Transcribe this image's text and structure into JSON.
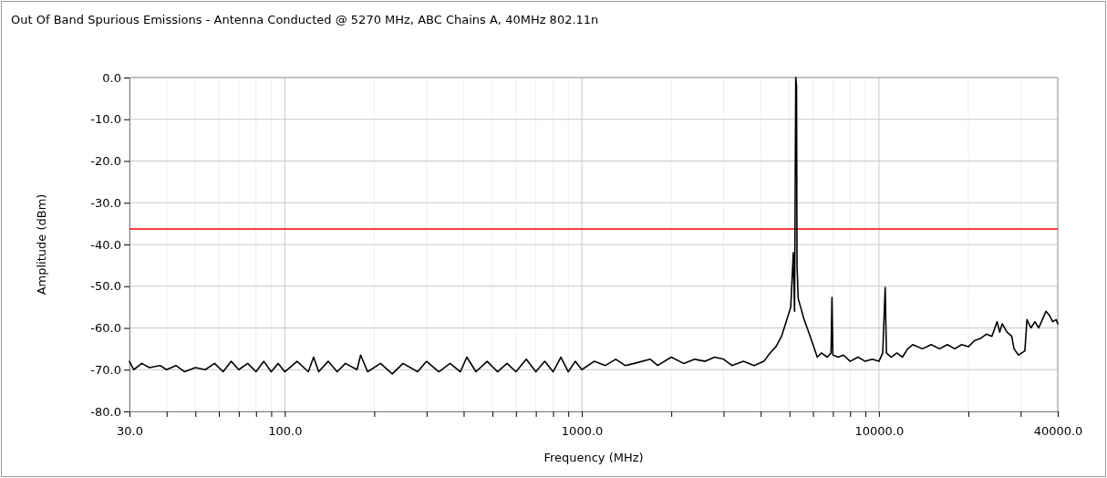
{
  "chart_data": {
    "type": "line",
    "title": "Out Of Band Spurious Emissions - Antenna Conducted @ 5270 MHz, ABC Chains A, 40MHz 802.11n",
    "xlabel": "Frequency (MHz)",
    "ylabel": "Amplitude (dBm)",
    "log": "x",
    "grid": true,
    "marker": "none",
    "line_style": "solid",
    "xlim": [
      30,
      40000
    ],
    "ylim": [
      -80,
      0
    ],
    "xticks": [
      {
        "value": 30,
        "label": "30.0"
      },
      {
        "value": 40,
        "label": null
      },
      {
        "value": 50,
        "label": null
      },
      {
        "value": 60,
        "label": null
      },
      {
        "value": 70,
        "label": null
      },
      {
        "value": 80,
        "label": null
      },
      {
        "value": 90,
        "label": null
      },
      {
        "value": 100,
        "label": "100.0"
      },
      {
        "value": 200,
        "label": null
      },
      {
        "value": 300,
        "label": null
      },
      {
        "value": 400,
        "label": null
      },
      {
        "value": 500,
        "label": null
      },
      {
        "value": 600,
        "label": null
      },
      {
        "value": 700,
        "label": null
      },
      {
        "value": 800,
        "label": null
      },
      {
        "value": 900,
        "label": null
      },
      {
        "value": 1000,
        "label": "1000.0"
      },
      {
        "value": 2000,
        "label": null
      },
      {
        "value": 3000,
        "label": null
      },
      {
        "value": 4000,
        "label": null
      },
      {
        "value": 5000,
        "label": null
      },
      {
        "value": 6000,
        "label": null
      },
      {
        "value": 7000,
        "label": null
      },
      {
        "value": 8000,
        "label": null
      },
      {
        "value": 9000,
        "label": null
      },
      {
        "value": 10000,
        "label": "10000.0"
      },
      {
        "value": 20000,
        "label": null
      },
      {
        "value": 30000,
        "label": null
      },
      {
        "value": 40000,
        "label": "40000.0"
      }
    ],
    "yticks": [
      {
        "value": 0,
        "label": "0.0"
      },
      {
        "value": -10,
        "label": "-10.0"
      },
      {
        "value": -20,
        "label": "-20.0"
      },
      {
        "value": -30,
        "label": "-30.0"
      },
      {
        "value": -40,
        "label": "-40.0"
      },
      {
        "value": -50,
        "label": "-50.0"
      },
      {
        "value": -60,
        "label": "-60.0"
      },
      {
        "value": -70,
        "label": "-70.0"
      },
      {
        "value": -80,
        "label": "-80.0"
      }
    ],
    "ref_lines": [
      {
        "axis": "y",
        "value": -36.3,
        "color": "#ff0000"
      }
    ],
    "series": [
      {
        "color": "#000000",
        "x": [
          30,
          31,
          33,
          35,
          38,
          40,
          43,
          46,
          50,
          54,
          58,
          62,
          66,
          70,
          75,
          80,
          85,
          90,
          95,
          100,
          110,
          120,
          125,
          130,
          140,
          150,
          160,
          175,
          180,
          190,
          210,
          230,
          250,
          280,
          300,
          330,
          360,
          390,
          410,
          440,
          480,
          520,
          560,
          600,
          650,
          700,
          750,
          800,
          850,
          900,
          950,
          1000,
          1100,
          1200,
          1300,
          1400,
          1500,
          1700,
          1800,
          2000,
          2200,
          2400,
          2600,
          2800,
          3000,
          3200,
          3500,
          3800,
          4100,
          4300,
          4500,
          4700,
          4900,
          5050,
          5150,
          5200,
          5250,
          5280,
          5300,
          5350,
          5450,
          5600,
          5800,
          6000,
          6200,
          6400,
          6700,
          6900,
          6950,
          7000,
          7300,
          7600,
          8000,
          8500,
          9000,
          9500,
          10000,
          10300,
          10500,
          10600,
          11000,
          11500,
          12000,
          12500,
          13000,
          14000,
          15000,
          16000,
          17000,
          18000,
          19000,
          20000,
          21000,
          22000,
          23000,
          24000,
          25000,
          25500,
          26000,
          27000,
          28000,
          28500,
          29500,
          31000,
          31500,
          32500,
          33500,
          34500,
          35500,
          36500,
          37500,
          38500,
          39500,
          40000
        ],
        "values": [
          -68,
          -70,
          -68.5,
          -69.5,
          -69,
          -70,
          -69,
          -70.5,
          -69.5,
          -70,
          -68.5,
          -70.5,
          -68,
          -70,
          -68.5,
          -70.5,
          -68,
          -70.5,
          -68.5,
          -70.5,
          -68,
          -70.5,
          -67,
          -70.5,
          -68,
          -70.5,
          -68.5,
          -70,
          -66.5,
          -70.5,
          -68.5,
          -71,
          -68.5,
          -70.5,
          -68,
          -70.5,
          -68.5,
          -70.5,
          -67,
          -70.5,
          -68,
          -70.5,
          -68.5,
          -70.5,
          -67.5,
          -70.5,
          -68,
          -70.5,
          -67,
          -70.5,
          -68,
          -70,
          -68,
          -69,
          -67.5,
          -69,
          -68.5,
          -67.5,
          -69,
          -67,
          -68.5,
          -67.5,
          -68,
          -67,
          -67.5,
          -69,
          -68,
          -69,
          -68,
          -66,
          -64.5,
          -62,
          -58,
          -55,
          -42,
          -56,
          0,
          -2,
          -45,
          -53,
          -55,
          -58,
          -61,
          -64,
          -67,
          -66,
          -67,
          -66,
          -52.7,
          -66.5,
          -67,
          -66.5,
          -68,
          -67,
          -68,
          -67.5,
          -68,
          -66,
          -50.3,
          -66,
          -67,
          -66,
          -67,
          -65,
          -64,
          -65,
          -64,
          -65,
          -64,
          -65,
          -64,
          -64.5,
          -63,
          -62.5,
          -61.5,
          -62,
          -58.5,
          -61,
          -59,
          -61,
          -62,
          -65,
          -66.5,
          -65.5,
          -58,
          -60,
          -58.5,
          -60,
          -58,
          -56,
          -57,
          -58.5,
          -58,
          -59
        ]
      }
    ]
  }
}
